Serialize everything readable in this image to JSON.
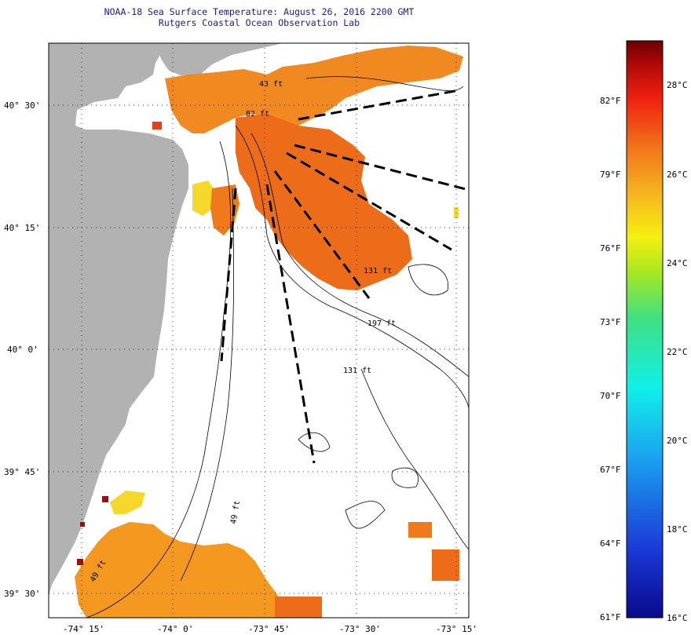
{
  "header": {
    "title": "NOAA-18 Sea Surface Temperature:  August 26, 2016 2200 GMT",
    "subtitle": "Rutgers Coastal Ocean Observation Lab"
  },
  "axes": {
    "lat_labels": [
      "40° 30'",
      "40° 15'",
      "40° 0'",
      "39° 45'",
      "39° 30'"
    ],
    "lon_labels": [
      "-74° 15'",
      "-74° 0'",
      "-73° 45'",
      "-73° 30'",
      "-73° 15'"
    ]
  },
  "depth_labels": {
    "d1": "43 ft",
    "d2": "82 ft",
    "d3": "131 ft",
    "d4": "197 ft",
    "d5": "131 ft",
    "d6": "49 ft",
    "d7": "49 ft"
  },
  "colorbar": {
    "f_labels": [
      "82°F",
      "79°F",
      "76°F",
      "73°F",
      "70°F",
      "67°F",
      "64°F",
      "61°F"
    ],
    "c_labels": [
      "28°C",
      "26°C",
      "24°C",
      "22°C",
      "20°C",
      "18°C",
      "16°C"
    ]
  },
  "colors": {
    "land": "#b2b2b2",
    "sst_orange": "#f07a1a",
    "sst_light_orange": "#f59a24",
    "sst_dark_orange": "#e8601a",
    "sst_yellow": "#f5e020",
    "sst_red": "#9b0f0f"
  }
}
